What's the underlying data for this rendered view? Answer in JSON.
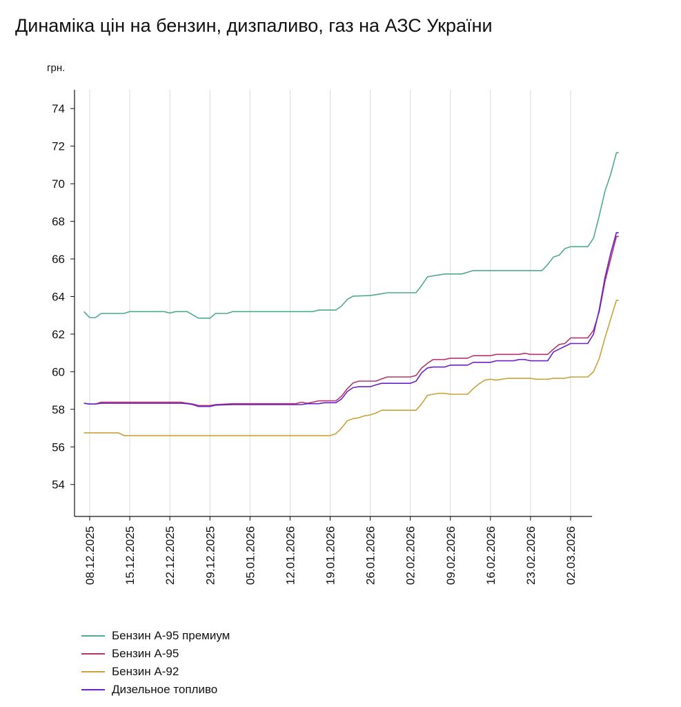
{
  "title": "Динаміка цін на бензин, дизпаливо, газ на АЗС України",
  "chart_data": {
    "type": "line",
    "title": "Динаміка цін на бензин, дизпаливо, газ на АЗС України",
    "ylabel": "грн.",
    "xlabel": "",
    "ylim": [
      52.3,
      75
    ],
    "yticks": [
      54,
      56,
      58,
      60,
      62,
      64,
      66,
      68,
      70,
      72,
      74
    ],
    "x_start": "2025-12-04",
    "x_end": "2026-03-05",
    "xticks": [
      "08.12.2025",
      "15.12.2025",
      "22.12.2025",
      "29.12.2025",
      "05.01.2026",
      "12.01.2026",
      "19.01.2026",
      "26.01.2026",
      "02.02.2026",
      "09.02.2026",
      "16.02.2026",
      "23.02.2026",
      "02.03.2026"
    ],
    "xtick_dates": [
      "2025-12-08",
      "2025-12-15",
      "2025-12-22",
      "2025-12-29",
      "2026-01-05",
      "2026-01-12",
      "2026-01-19",
      "2026-01-26",
      "2026-02-02",
      "2026-02-09",
      "2026-02-16",
      "2026-02-23",
      "2026-03-02"
    ],
    "grid": "vertical",
    "legend_position": "bottom-left",
    "series": [
      {
        "name": "Бензин А-95 премиум",
        "color": "#4daa8a",
        "points": [
          [
            "2025-12-07",
            63.2
          ],
          [
            "2025-12-08",
            62.88
          ],
          [
            "2025-12-09",
            62.88
          ],
          [
            "2025-12-10",
            63.1
          ],
          [
            "2025-12-14",
            63.1
          ],
          [
            "2025-12-15",
            63.2
          ],
          [
            "2025-12-21",
            63.2
          ],
          [
            "2025-12-22",
            63.12
          ],
          [
            "2025-12-23",
            63.2
          ],
          [
            "2025-12-25",
            63.2
          ],
          [
            "2025-12-27",
            62.85
          ],
          [
            "2025-12-29",
            62.85
          ],
          [
            "2025-12-30",
            63.1
          ],
          [
            "2026-01-01",
            63.1
          ],
          [
            "2026-01-02",
            63.2
          ],
          [
            "2026-01-16",
            63.2
          ],
          [
            "2026-01-17",
            63.28
          ],
          [
            "2026-01-20",
            63.28
          ],
          [
            "2026-01-21",
            63.5
          ],
          [
            "2026-01-22",
            63.85
          ],
          [
            "2026-01-23",
            64.02
          ],
          [
            "2026-01-26",
            64.05
          ],
          [
            "2026-01-27",
            64.1
          ],
          [
            "2026-01-28",
            64.15
          ],
          [
            "2026-01-29",
            64.2
          ],
          [
            "2026-02-03",
            64.2
          ],
          [
            "2026-02-04",
            64.6
          ],
          [
            "2026-02-05",
            65.05
          ],
          [
            "2026-02-06",
            65.1
          ],
          [
            "2026-02-07",
            65.15
          ],
          [
            "2026-02-08",
            65.2
          ],
          [
            "2026-02-11",
            65.2
          ],
          [
            "2026-02-13",
            65.38
          ],
          [
            "2026-02-25",
            65.38
          ],
          [
            "2026-02-26",
            65.7
          ],
          [
            "2026-02-27",
            66.1
          ],
          [
            "2026-02-28",
            66.2
          ],
          [
            "2026-03-01",
            66.55
          ],
          [
            "2026-03-02",
            66.65
          ],
          [
            "2026-03-05",
            66.65
          ],
          [
            "2026-03-06",
            67.1
          ],
          [
            "2026-03-07",
            68.3
          ],
          [
            "2026-03-08",
            69.6
          ],
          [
            "2026-03-09",
            70.5
          ],
          [
            "2026-03-10",
            71.65
          ],
          [
            "2026-03-10.4",
            71.65
          ]
        ]
      },
      {
        "name": "Бензин А-95",
        "color": "#b5346b",
        "points": [
          [
            "2025-12-07",
            58.32
          ],
          [
            "2025-12-08",
            58.28
          ],
          [
            "2025-12-09",
            58.28
          ],
          [
            "2025-12-10",
            58.38
          ],
          [
            "2025-12-24",
            58.38
          ],
          [
            "2025-12-25",
            58.32
          ],
          [
            "2025-12-26",
            58.28
          ],
          [
            "2025-12-27",
            58.2
          ],
          [
            "2025-12-29",
            58.2
          ],
          [
            "2025-12-30",
            58.25
          ],
          [
            "2026-01-02",
            58.3
          ],
          [
            "2026-01-13",
            58.3
          ],
          [
            "2026-01-14",
            58.38
          ],
          [
            "2026-01-15",
            58.32
          ],
          [
            "2026-01-17",
            58.45
          ],
          [
            "2026-01-20",
            58.45
          ],
          [
            "2026-01-21",
            58.7
          ],
          [
            "2026-01-22",
            59.1
          ],
          [
            "2026-01-23",
            59.4
          ],
          [
            "2026-01-24",
            59.5
          ],
          [
            "2026-01-27",
            59.5
          ],
          [
            "2026-01-28",
            59.62
          ],
          [
            "2026-01-29",
            59.72
          ],
          [
            "2026-02-02",
            59.72
          ],
          [
            "2026-02-03",
            59.8
          ],
          [
            "2026-02-04",
            60.2
          ],
          [
            "2026-02-05",
            60.45
          ],
          [
            "2026-02-06",
            60.65
          ],
          [
            "2026-02-08",
            60.65
          ],
          [
            "2026-02-09",
            60.72
          ],
          [
            "2026-02-12",
            60.72
          ],
          [
            "2026-02-13",
            60.85
          ],
          [
            "2026-02-16",
            60.85
          ],
          [
            "2026-02-17",
            60.92
          ],
          [
            "2026-02-21",
            60.92
          ],
          [
            "2026-02-22",
            60.98
          ],
          [
            "2026-02-23",
            60.92
          ],
          [
            "2026-02-26",
            60.92
          ],
          [
            "2026-02-27",
            61.2
          ],
          [
            "2026-02-28",
            61.45
          ],
          [
            "2026-03-01",
            61.5
          ],
          [
            "2026-03-02",
            61.8
          ],
          [
            "2026-03-05",
            61.8
          ],
          [
            "2026-03-06",
            62.2
          ],
          [
            "2026-03-07",
            63.2
          ],
          [
            "2026-03-08",
            64.8
          ],
          [
            "2026-03-09",
            66.0
          ],
          [
            "2026-03-10",
            67.2
          ],
          [
            "2026-03-10.4",
            67.2
          ]
        ]
      },
      {
        "name": "Бензин А-92",
        "color": "#c9a23a",
        "points": [
          [
            "2025-12-07",
            56.75
          ],
          [
            "2025-12-13",
            56.75
          ],
          [
            "2025-12-14",
            56.6
          ],
          [
            "2026-01-19",
            56.6
          ],
          [
            "2026-01-20",
            56.7
          ],
          [
            "2026-01-21",
            57.0
          ],
          [
            "2026-01-22",
            57.4
          ],
          [
            "2026-01-23",
            57.5
          ],
          [
            "2026-01-24",
            57.55
          ],
          [
            "2026-01-25",
            57.65
          ],
          [
            "2026-01-26",
            57.7
          ],
          [
            "2026-01-27",
            57.8
          ],
          [
            "2026-01-28",
            57.95
          ],
          [
            "2026-02-03",
            57.95
          ],
          [
            "2026-02-04",
            58.3
          ],
          [
            "2026-02-05",
            58.75
          ],
          [
            "2026-02-06",
            58.8
          ],
          [
            "2026-02-07",
            58.85
          ],
          [
            "2026-02-08",
            58.85
          ],
          [
            "2026-02-09",
            58.8
          ],
          [
            "2026-02-12",
            58.8
          ],
          [
            "2026-02-13",
            59.1
          ],
          [
            "2026-02-14",
            59.35
          ],
          [
            "2026-02-15",
            59.55
          ],
          [
            "2026-02-16",
            59.6
          ],
          [
            "2026-02-17",
            59.55
          ],
          [
            "2026-02-18",
            59.6
          ],
          [
            "2026-02-19",
            59.65
          ],
          [
            "2026-02-23",
            59.65
          ],
          [
            "2026-02-24",
            59.6
          ],
          [
            "2026-02-26",
            59.6
          ],
          [
            "2026-02-27",
            59.65
          ],
          [
            "2026-03-01",
            59.65
          ],
          [
            "2026-03-02",
            59.72
          ],
          [
            "2026-03-05",
            59.72
          ],
          [
            "2026-03-06",
            60.0
          ],
          [
            "2026-03-07",
            60.7
          ],
          [
            "2026-03-08",
            61.8
          ],
          [
            "2026-03-09",
            62.8
          ],
          [
            "2026-03-10",
            63.8
          ],
          [
            "2026-03-10.4",
            63.8
          ]
        ]
      },
      {
        "name": "Дизельное топливо",
        "color": "#6a1fc8",
        "points": [
          [
            "2025-12-07",
            58.32
          ],
          [
            "2025-12-08",
            58.28
          ],
          [
            "2025-12-09",
            58.28
          ],
          [
            "2025-12-10",
            58.32
          ],
          [
            "2025-12-24",
            58.32
          ],
          [
            "2025-12-25",
            58.3
          ],
          [
            "2025-12-26",
            58.25
          ],
          [
            "2025-12-27",
            58.15
          ],
          [
            "2025-12-29",
            58.15
          ],
          [
            "2025-12-30",
            58.22
          ],
          [
            "2026-01-02",
            58.25
          ],
          [
            "2026-01-14",
            58.25
          ],
          [
            "2026-01-15",
            58.3
          ],
          [
            "2026-01-17",
            58.3
          ],
          [
            "2026-01-18",
            58.35
          ],
          [
            "2026-01-20",
            58.35
          ],
          [
            "2026-01-21",
            58.55
          ],
          [
            "2026-01-22",
            58.95
          ],
          [
            "2026-01-23",
            59.15
          ],
          [
            "2026-01-24",
            59.2
          ],
          [
            "2026-01-26",
            59.2
          ],
          [
            "2026-01-27",
            59.3
          ],
          [
            "2026-01-28",
            59.38
          ],
          [
            "2026-02-02",
            59.38
          ],
          [
            "2026-02-03",
            59.5
          ],
          [
            "2026-02-04",
            59.95
          ],
          [
            "2026-02-05",
            60.2
          ],
          [
            "2026-02-06",
            60.25
          ],
          [
            "2026-02-08",
            60.25
          ],
          [
            "2026-02-09",
            60.35
          ],
          [
            "2026-02-12",
            60.35
          ],
          [
            "2026-02-13",
            60.5
          ],
          [
            "2026-02-16",
            60.5
          ],
          [
            "2026-02-17",
            60.58
          ],
          [
            "2026-02-20",
            60.58
          ],
          [
            "2026-02-21",
            60.65
          ],
          [
            "2026-02-22",
            60.65
          ],
          [
            "2026-02-23",
            60.58
          ],
          [
            "2026-02-26",
            60.58
          ],
          [
            "2026-02-27",
            61.05
          ],
          [
            "2026-02-28",
            61.2
          ],
          [
            "2026-03-01",
            61.35
          ],
          [
            "2026-03-02",
            61.5
          ],
          [
            "2026-03-05",
            61.5
          ],
          [
            "2026-03-06",
            62.0
          ],
          [
            "2026-03-07",
            63.3
          ],
          [
            "2026-03-08",
            65.0
          ],
          [
            "2026-03-09",
            66.3
          ],
          [
            "2026-03-10",
            67.4
          ],
          [
            "2026-03-10.4",
            67.4
          ]
        ]
      }
    ]
  }
}
